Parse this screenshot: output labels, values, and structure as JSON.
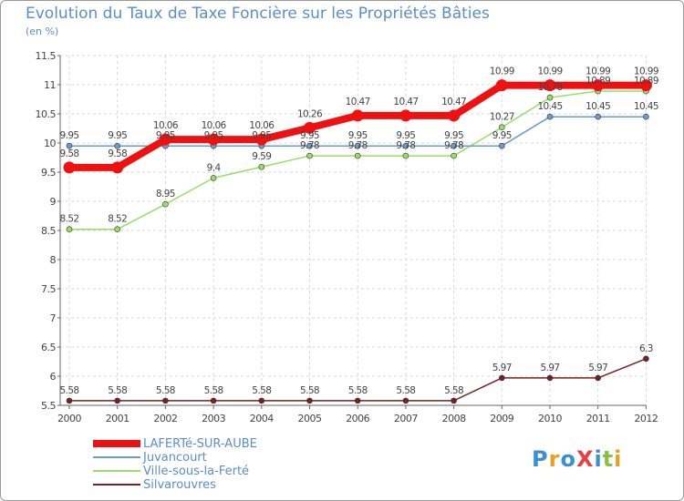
{
  "title": "Evolution du Taux de Taxe Foncière sur les Propriétés Bâties",
  "subtitle": "(en %)",
  "logo": "ProXiti",
  "chart_data": {
    "type": "line",
    "title": "Evolution du Taux de Taxe Foncière sur les Propriétés Bâties",
    "ylabel": "(en %)",
    "xlabel": "",
    "ylim": [
      5.5,
      11.5
    ],
    "yticks": [
      5.5,
      6,
      6.5,
      7,
      7.5,
      8,
      8.5,
      9,
      9.5,
      10,
      10.5,
      11,
      11.5
    ],
    "ytick_labels": [
      "5.5",
      "6",
      "6.5",
      "7",
      "7.5",
      "8",
      "8.5",
      "9",
      "9.5",
      "10",
      "10.5",
      "11",
      "11.5"
    ],
    "x": [
      "2000",
      "2001",
      "2002",
      "2003",
      "2004",
      "2005",
      "2006",
      "2007",
      "2008",
      "2009",
      "2010",
      "2011",
      "2012"
    ],
    "grid": true,
    "legend": "bottom-left",
    "series": [
      {
        "name": "LAFERTé-SUR-AUBE",
        "color": "#ee1111",
        "values": [
          9.58,
          9.58,
          10.06,
          10.06,
          10.06,
          10.26,
          10.47,
          10.47,
          10.47,
          10.99,
          10.99,
          10.99,
          10.99
        ],
        "labels": [
          "9.58",
          "9.58",
          "10.06",
          "10.06",
          "10.06",
          "10.26",
          "10.47",
          "10.47",
          "10.47",
          "10.99",
          "10.99",
          "10.99",
          "10.99"
        ]
      },
      {
        "name": "Juvancourt",
        "color": "#6a9bd0",
        "values": [
          9.95,
          9.95,
          9.95,
          9.95,
          9.95,
          9.95,
          9.95,
          9.95,
          9.95,
          9.95,
          10.45,
          10.45,
          10.45
        ],
        "labels": [
          "9.95",
          "9.95",
          "9.95",
          "9.95",
          "9.95",
          "9.95",
          "9.95",
          "9.95",
          "9.95",
          "9.95",
          "10.45",
          "10.45",
          "10.45"
        ]
      },
      {
        "name": "Ville-sous-la-Ferté",
        "color": "#99dd66",
        "values": [
          8.52,
          8.52,
          8.95,
          9.4,
          9.59,
          9.78,
          9.78,
          9.78,
          9.78,
          10.27,
          10.78,
          10.89,
          10.89
        ],
        "labels": [
          "8.52",
          "8.52",
          "8.95",
          "9.4",
          "9.59",
          "9.78",
          "9.78",
          "9.78",
          "9.78",
          "10.27",
          "10.78",
          "10.89",
          "10.89"
        ]
      },
      {
        "name": "Silvarouvres",
        "color": "#772222",
        "values": [
          5.58,
          5.58,
          5.58,
          5.58,
          5.58,
          5.58,
          5.58,
          5.58,
          5.58,
          5.97,
          5.97,
          5.97,
          6.3
        ],
        "labels": [
          "5.58",
          "5.58",
          "5.58",
          "5.58",
          "5.58",
          "5.58",
          "5.58",
          "5.58",
          "5.58",
          "5.97",
          "5.97",
          "5.97",
          "6.3"
        ]
      }
    ]
  }
}
